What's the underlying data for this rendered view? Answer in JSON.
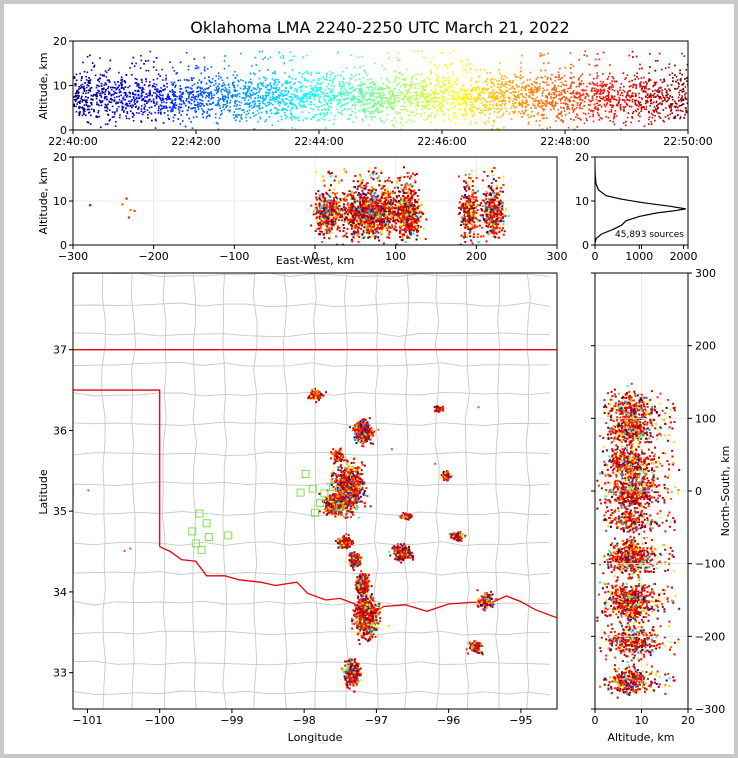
{
  "chart_data": {
    "type": "scatter",
    "title": "Oklahoma LMA 2240-2250 UTC March 21, 2022",
    "panels": {
      "time_altitude": {
        "ylabel": "Altitude, km",
        "ylim": [
          0,
          20
        ],
        "yticks": [
          "0",
          "10",
          "20"
        ],
        "xticks": [
          "22:40:00",
          "22:42:00",
          "22:44:00",
          "22:46:00",
          "22:48:00",
          "22:50:00"
        ],
        "xlim_minutes": [
          0,
          10
        ]
      },
      "ew_altitude": {
        "ylabel": "Altitude, km",
        "xlabel": "East-West, km",
        "xlim": [
          -300,
          300
        ],
        "ylim": [
          0,
          20
        ],
        "xticks": [
          "−300",
          "−200",
          "−100",
          "0",
          "100",
          "200",
          "300"
        ],
        "yticks": [
          "0",
          "10",
          "20"
        ],
        "clusters": [
          {
            "x": 70,
            "spread": 35,
            "weight": 1.0
          },
          {
            "x": 115,
            "spread": 12,
            "weight": 0.4
          },
          {
            "x": 190,
            "spread": 10,
            "weight": 0.25
          },
          {
            "x": 220,
            "spread": 12,
            "weight": 0.3
          },
          {
            "x": 15,
            "spread": 15,
            "weight": 0.3
          }
        ]
      },
      "histogram": {
        "xlim": [
          0,
          2100
        ],
        "ylim": [
          0,
          20
        ],
        "xticks": [
          "0",
          "1000",
          "2000"
        ],
        "yticks": [
          "0",
          "10",
          "20"
        ],
        "annotation": "45,893 sources",
        "profile": [
          [
            0,
            0.5
          ],
          [
            30,
            1.5
          ],
          [
            150,
            2.5
          ],
          [
            400,
            3.5
          ],
          [
            600,
            4.5
          ],
          [
            700,
            5.5
          ],
          [
            1000,
            6.5
          ],
          [
            1400,
            7.3
          ],
          [
            1800,
            7.8
          ],
          [
            2050,
            8.2
          ],
          [
            1700,
            8.8
          ],
          [
            1100,
            9.6
          ],
          [
            600,
            10.4
          ],
          [
            250,
            11.2
          ],
          [
            80,
            12.5
          ],
          [
            20,
            14
          ],
          [
            5,
            16
          ],
          [
            0,
            18
          ]
        ]
      },
      "map": {
        "xlabel": "Longitude",
        "ylabel": "Latitude",
        "xlim": [
          -101.2,
          -94.5
        ],
        "ylim": [
          32.55,
          37.95
        ],
        "xticks": [
          "−101",
          "−100",
          "−99",
          "−98",
          "−97",
          "−96",
          "−95"
        ],
        "yticks": [
          "33",
          "34",
          "35",
          "36",
          "37"
        ],
        "state_border_color": "#e8000b",
        "county_line_color": "#c8c8c8",
        "station_color": "#7be14a",
        "stations": [
          [
            -97.98,
            35.46
          ],
          [
            -98.05,
            35.23
          ],
          [
            -97.88,
            35.28
          ],
          [
            -97.72,
            35.22
          ],
          [
            -97.6,
            35.3
          ],
          [
            -97.78,
            35.1
          ],
          [
            -97.5,
            35.05
          ],
          [
            -97.85,
            34.98
          ],
          [
            -99.45,
            34.97
          ],
          [
            -99.35,
            34.85
          ],
          [
            -99.55,
            34.75
          ],
          [
            -99.32,
            34.68
          ],
          [
            -99.5,
            34.6
          ],
          [
            -99.42,
            34.52
          ],
          [
            -99.05,
            34.7
          ]
        ],
        "storm_cells": [
          {
            "lon": -97.35,
            "lat": 33.0,
            "sx": 0.08,
            "sy": 0.12,
            "n": 350
          },
          {
            "lon": -97.15,
            "lat": 33.7,
            "sx": 0.12,
            "sy": 0.2,
            "n": 700
          },
          {
            "lon": -97.2,
            "lat": 34.1,
            "sx": 0.07,
            "sy": 0.1,
            "n": 250
          },
          {
            "lon": -97.3,
            "lat": 34.4,
            "sx": 0.06,
            "sy": 0.07,
            "n": 250
          },
          {
            "lon": -97.45,
            "lat": 34.62,
            "sx": 0.07,
            "sy": 0.05,
            "n": 200
          },
          {
            "lon": -96.65,
            "lat": 34.5,
            "sx": 0.1,
            "sy": 0.07,
            "n": 300
          },
          {
            "lon": -97.4,
            "lat": 35.3,
            "sx": 0.16,
            "sy": 0.22,
            "n": 800
          },
          {
            "lon": -97.6,
            "lat": 35.1,
            "sx": 0.1,
            "sy": 0.1,
            "n": 400
          },
          {
            "lon": -97.2,
            "lat": 36.0,
            "sx": 0.1,
            "sy": 0.1,
            "n": 400
          },
          {
            "lon": -97.55,
            "lat": 35.7,
            "sx": 0.05,
            "sy": 0.06,
            "n": 120
          },
          {
            "lon": -97.85,
            "lat": 36.45,
            "sx": 0.07,
            "sy": 0.05,
            "n": 140
          },
          {
            "lon": -95.5,
            "lat": 33.9,
            "sx": 0.08,
            "sy": 0.07,
            "n": 160
          },
          {
            "lon": -95.65,
            "lat": 33.33,
            "sx": 0.07,
            "sy": 0.05,
            "n": 120
          },
          {
            "lon": -95.9,
            "lat": 34.7,
            "sx": 0.07,
            "sy": 0.04,
            "n": 110
          },
          {
            "lon": -96.05,
            "lat": 35.45,
            "sx": 0.05,
            "sy": 0.04,
            "n": 60
          },
          {
            "lon": -96.6,
            "lat": 34.95,
            "sx": 0.06,
            "sy": 0.03,
            "n": 60
          },
          {
            "lon": -96.15,
            "lat": 36.28,
            "sx": 0.06,
            "sy": 0.03,
            "n": 50
          }
        ]
      },
      "ns_altitude": {
        "ylabel": "North-South, km",
        "xlabel": "Altitude, km",
        "xlim": [
          0,
          20
        ],
        "ylim": [
          -300,
          300
        ],
        "xticks": [
          "0",
          "10",
          "20"
        ],
        "yticks": [
          "−300",
          "−200",
          "−100",
          "0",
          "100",
          "200",
          "300"
        ]
      }
    }
  }
}
